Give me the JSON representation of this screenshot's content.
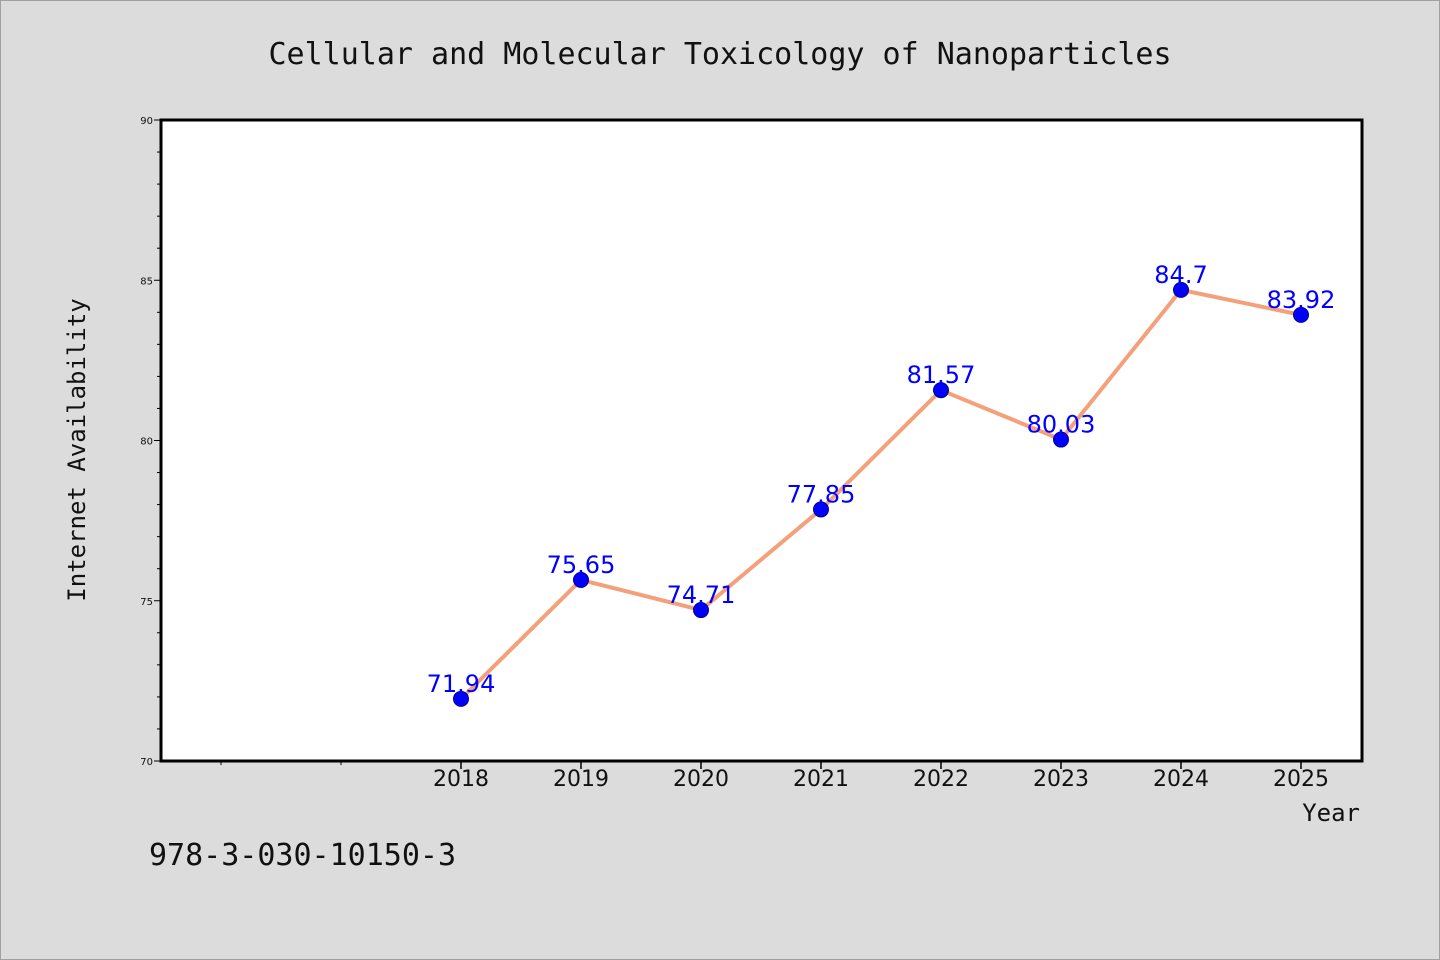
{
  "chart_data": {
    "type": "line",
    "title": "Cellular and Molecular Toxicology of Nanoparticles",
    "xlabel": "Year",
    "ylabel": "Internet Availability",
    "categories": [
      "2018",
      "2019",
      "2020",
      "2021",
      "2022",
      "2023",
      "2024",
      "2025"
    ],
    "series": [
      {
        "values": [
          71.94,
          75.65,
          74.71,
          77.85,
          81.57,
          80.03,
          84.7,
          83.92
        ],
        "data_labels": [
          "71.94",
          "75.65",
          "74.71",
          "77.85",
          "81.57",
          "80.03",
          "84.7",
          "83.92"
        ]
      }
    ],
    "ylim": [
      70,
      90
    ],
    "yticks": [
      "70",
      "75",
      "80",
      "85",
      "90"
    ],
    "x_slots_before_first_category": 2,
    "grid": false,
    "colors": {
      "line": "#f4a07a",
      "marker": "#0000ff",
      "marker_edge": "#00008b",
      "data_label": "#0000ff",
      "plot_background": "#ffffff",
      "figure_background": "#dcdcdc",
      "axis": "#000000"
    }
  },
  "annotation": {
    "text": "978-3-030-10150-3"
  }
}
